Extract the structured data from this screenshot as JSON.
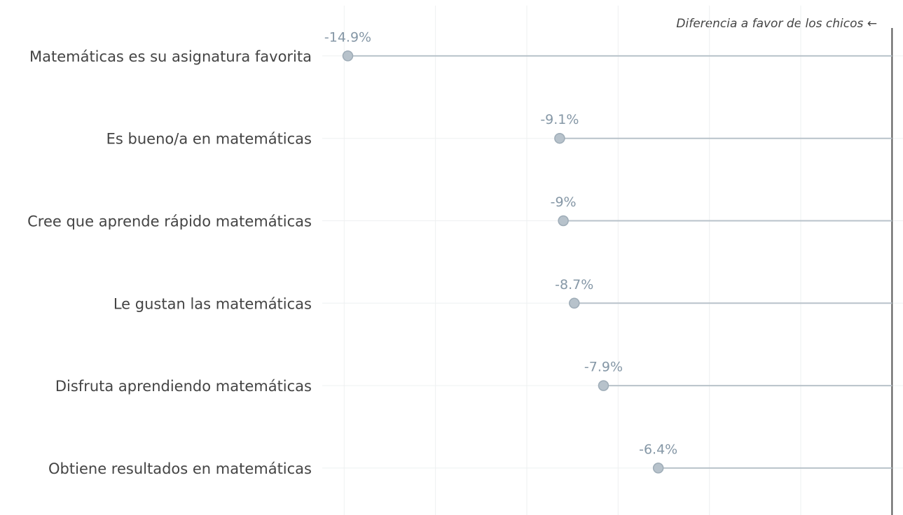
{
  "chart_data": {
    "type": "lollipop",
    "annotation": "Diferencia a favor de los chicos ←",
    "categories": [
      "Matemáticas es su asignatura favorita",
      "Es bueno/a en matemáticas",
      "Cree que aprende rápido matemáticas",
      "Le gustan las matemáticas",
      "Disfruta aprendiendo matemáticas",
      "Obtiene resultados en matemáticas"
    ],
    "values": [
      -14.9,
      -9.1,
      -9,
      -8.7,
      -7.9,
      -6.4
    ],
    "value_labels": [
      "-14.9%",
      "-9.1%",
      "-9%",
      "-8.7%",
      "-7.9%",
      "-6.4%"
    ],
    "color": "#b7c2cb",
    "xlim": [
      -15.6,
      0.3
    ],
    "xticks": [
      -15,
      -12.5,
      -10,
      -7.5,
      -5,
      -2.5,
      0
    ],
    "grid": true
  }
}
